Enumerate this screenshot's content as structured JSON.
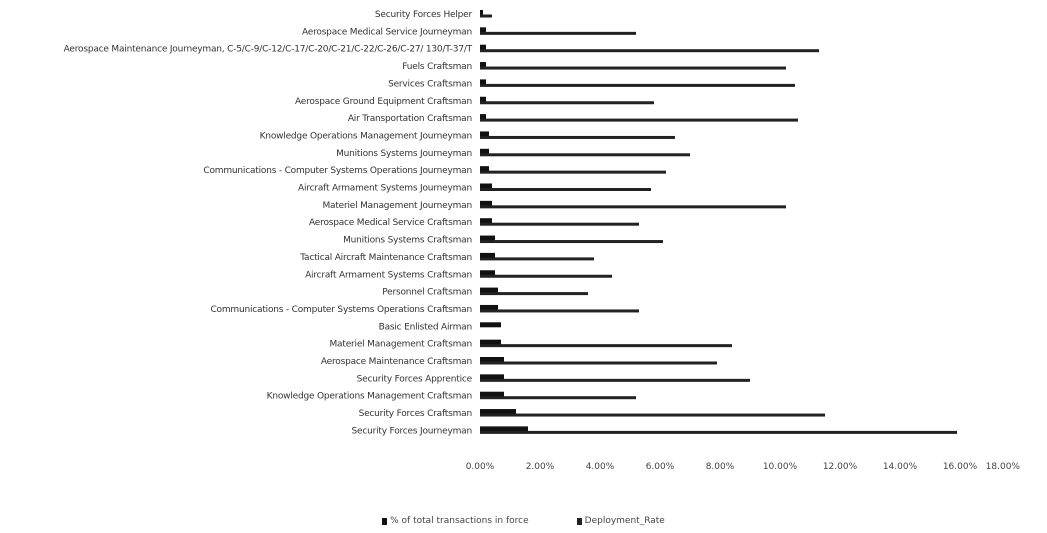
{
  "chart_data": {
    "type": "bar",
    "orientation": "horizontal",
    "categories": [
      "Security Forces Helper",
      "Aerospace Medical Service Journeyman",
      "Aerospace Maintenance Journeyman, C-5/C-9/C-12/C-17/C-20/C-21/C-22/C-26/C-27/ 130/T-37/T",
      "Fuels Craftsman",
      "Services Craftsman",
      "Aerospace Ground Equipment Craftsman",
      "Air Transportation Craftsman",
      "Knowledge Operations Management Journeyman",
      "Munitions Systems Journeyman",
      "Communications - Computer Systems Operations Journeyman",
      "Aircraft Armament Systems Journeyman",
      "Materiel Management Journeyman",
      "Aerospace Medical Service Craftsman",
      "Munitions Systems Craftsman",
      "Tactical Aircraft Maintenance Craftsman",
      "Aircraft Armament Systems Craftsman",
      "Personnel Craftsman",
      "Communications - Computer Systems Operations Craftsman",
      "Basic Enlisted Airman",
      "Materiel Management Craftsman",
      "Aerospace Maintenance Craftsman",
      "Security Forces Apprentice",
      "Knowledge Operations Management Craftsman",
      "Security Forces Craftsman",
      "Security Forces Journeyman"
    ],
    "series": [
      {
        "name": "% of total transactions in force",
        "color": "#111111",
        "values": [
          0.1,
          0.2,
          0.2,
          0.2,
          0.2,
          0.2,
          0.2,
          0.3,
          0.3,
          0.3,
          0.4,
          0.4,
          0.4,
          0.5,
          0.5,
          0.5,
          0.6,
          0.6,
          0.7,
          0.7,
          0.8,
          0.8,
          0.8,
          1.2,
          1.6
        ]
      },
      {
        "name": "Deployment_Rate",
        "color": "#222222",
        "values": [
          0.4,
          5.2,
          11.3,
          10.2,
          10.5,
          5.8,
          10.6,
          6.5,
          7.0,
          6.2,
          5.7,
          10.2,
          5.3,
          6.1,
          3.8,
          4.4,
          3.6,
          5.3,
          0.0,
          8.4,
          7.9,
          9.0,
          5.2,
          11.5,
          15.9
        ]
      }
    ],
    "xlim": [
      0,
      18
    ],
    "x_ticks": [
      "0.00%",
      "2.00%",
      "4.00%",
      "6.00%",
      "8.00%",
      "10.00%",
      "12.00%",
      "14.00%",
      "16.00%",
      "18.00%"
    ],
    "grid": false,
    "legend": "bottom"
  }
}
